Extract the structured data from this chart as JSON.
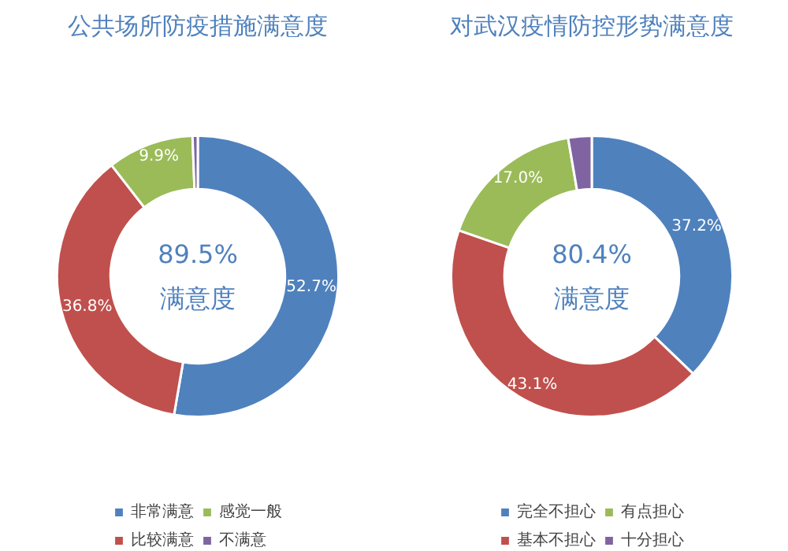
{
  "chart_data": [
    {
      "type": "donut",
      "title": "公共场所防疫措施满意度",
      "categories": [
        "非常满意",
        "比较满意",
        "感觉一般",
        "不满意"
      ],
      "values": [
        52.7,
        36.8,
        9.9,
        0.6
      ],
      "colors": [
        "#4f81bd",
        "#c0504d",
        "#9bbb59",
        "#8064a2"
      ],
      "value_labels": [
        "52.7%",
        "36.8%",
        "9.9%",
        null
      ],
      "annotations": [
        "89.5%",
        "满意度"
      ],
      "legend": "bottom"
    },
    {
      "type": "donut",
      "title": "对武汉疫情防控形势满意度",
      "categories": [
        "完全不担心",
        "基本不担心",
        "有点担心",
        "十分担心"
      ],
      "values": [
        37.2,
        43.1,
        17.0,
        2.7
      ],
      "colors": [
        "#4f81bd",
        "#c0504d",
        "#9bbb59",
        "#8064a2"
      ],
      "value_labels": [
        "37.2%",
        "43.1%",
        "17.0%",
        null
      ],
      "annotations": [
        "80.4%",
        "满意度"
      ],
      "legend": "bottom"
    }
  ]
}
